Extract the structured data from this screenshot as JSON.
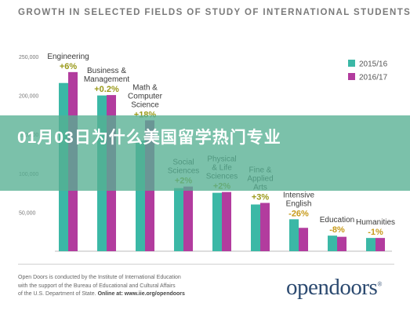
{
  "banner": {
    "text": "01月03日为什么美国留学热门专业"
  },
  "chart_data": {
    "type": "bar",
    "title": "GROWTH IN SELECTED FIELDS OF STUDY OF INTERNATIONAL STUDENTS",
    "xlabel": "",
    "ylabel": "",
    "ylim": [
      0,
      250000
    ],
    "yticks": [
      "250,000",
      "200,000",
      "150,000",
      "100,000",
      "50,000"
    ],
    "yticks_values": [
      250000,
      200000,
      150000,
      100000,
      50000
    ],
    "grid": false,
    "legend": "top-right",
    "categories": [
      {
        "name": "Engineering",
        "label_lines": [
          "Engineering"
        ],
        "change": "+6%",
        "change_color": "#9a9a1a"
      },
      {
        "name": "Business & Management",
        "label_lines": [
          "Business &",
          "Management"
        ],
        "change": "+0.2%",
        "change_color": "#9a9a1a"
      },
      {
        "name": "Math & Computer Science",
        "label_lines": [
          "Math &",
          "Computer",
          "Science"
        ],
        "change": "+18%",
        "change_color": "#9a9a1a"
      },
      {
        "name": "Social Sciences",
        "label_lines": [
          "Social",
          "Sciences"
        ],
        "change": "+2%",
        "change_color": "#9a9a1a"
      },
      {
        "name": "Physical & Life Sciences",
        "label_lines": [
          "Physical",
          "& Life",
          "Sciences"
        ],
        "change": "+2%",
        "change_color": "#9a9a1a"
      },
      {
        "name": "Fine & Applied Arts",
        "label_lines": [
          "Fine &",
          "Applied",
          "Arts"
        ],
        "change": "+3%",
        "change_color": "#9a9a1a"
      },
      {
        "name": "Intensive English",
        "label_lines": [
          "Intensive",
          "English"
        ],
        "change": "-26%",
        "change_color": "#c79a1a"
      },
      {
        "name": "Education",
        "label_lines": [
          "Education"
        ],
        "change": "-8%",
        "change_color": "#c79a1a"
      },
      {
        "name": "Humanities",
        "label_lines": [
          "Humanities"
        ],
        "change": "-1%",
        "change_color": "#c79a1a"
      }
    ],
    "series": [
      {
        "name": "2015/16",
        "color": "#3bb8a6",
        "values": [
          216000,
          200000,
          142000,
          81000,
          75000,
          60000,
          41000,
          20000,
          17000
        ]
      },
      {
        "name": "2016/17",
        "color": "#b23c9e",
        "values": [
          230000,
          200500,
          168000,
          83000,
          76000,
          62000,
          30000,
          18500,
          17000
        ]
      }
    ]
  },
  "footer": {
    "line1": "Open Doors is conducted by the Institute of International Education",
    "line2": "with the support of the Bureau of Educational and Cultural Affairs",
    "line3": "of the U.S. Department of State.",
    "line3_bold": "Online at: www.iie.org/opendoors"
  },
  "logo": {
    "text": "opendoors",
    "registered": "®"
  }
}
